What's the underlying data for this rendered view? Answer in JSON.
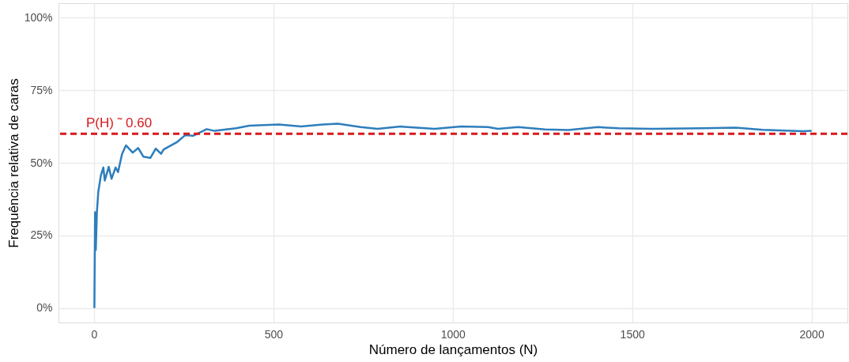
{
  "chart_data": {
    "type": "line",
    "xlabel": "Número de lançamentos (N)",
    "ylabel": "Frequência relativa de caras",
    "xlim": [
      -99,
      2100
    ],
    "xticks": [
      0,
      500,
      1000,
      1500,
      2000
    ],
    "ylim": [
      -5,
      105
    ],
    "yticks": [
      {
        "value": 0,
        "label": "0%"
      },
      {
        "value": 25,
        "label": "25%"
      },
      {
        "value": 50,
        "label": "50%"
      },
      {
        "value": 75,
        "label": "75%"
      },
      {
        "value": 100,
        "label": "100%"
      }
    ],
    "grid": true,
    "line_style": "solid",
    "marker": "none",
    "series": [
      {
        "color": "#2e7ebc",
        "x": [
          1,
          3,
          5,
          8,
          12,
          19,
          26,
          30,
          41,
          49,
          60,
          67,
          78,
          89,
          108,
          123,
          138,
          157,
          172,
          187,
          194,
          232,
          254,
          276,
          314,
          336,
          396,
          433,
          515,
          577,
          638,
          680,
          743,
          790,
          855,
          949,
          1023,
          1098,
          1126,
          1182,
          1257,
          1322,
          1405,
          1462,
          1555,
          1695,
          1789,
          1864,
          1976,
          2000
        ],
        "values": [
          0,
          33,
          20,
          33,
          40,
          45.6,
          48.4,
          43.9,
          48.6,
          44.5,
          48.4,
          46.8,
          53,
          56,
          53.5,
          55.1,
          52.1,
          51.7,
          54.9,
          53.1,
          54.6,
          57.2,
          59.5,
          59.3,
          61.6,
          61,
          61.9,
          62.8,
          63.2,
          62.5,
          63.2,
          63.5,
          62.3,
          61.7,
          62.5,
          61.7,
          62.5,
          62.3,
          61.7,
          62.3,
          61.5,
          61.3,
          62.3,
          61.9,
          61.7,
          61.9,
          62.1,
          61.4,
          60.9,
          61
        ]
      }
    ],
    "ref_lines": [
      {
        "axis": "y",
        "value": 60,
        "color": "#d7191c",
        "line_style": "dashed"
      }
    ],
    "annotations": [
      "P(H) ˜ 0.60"
    ]
  }
}
